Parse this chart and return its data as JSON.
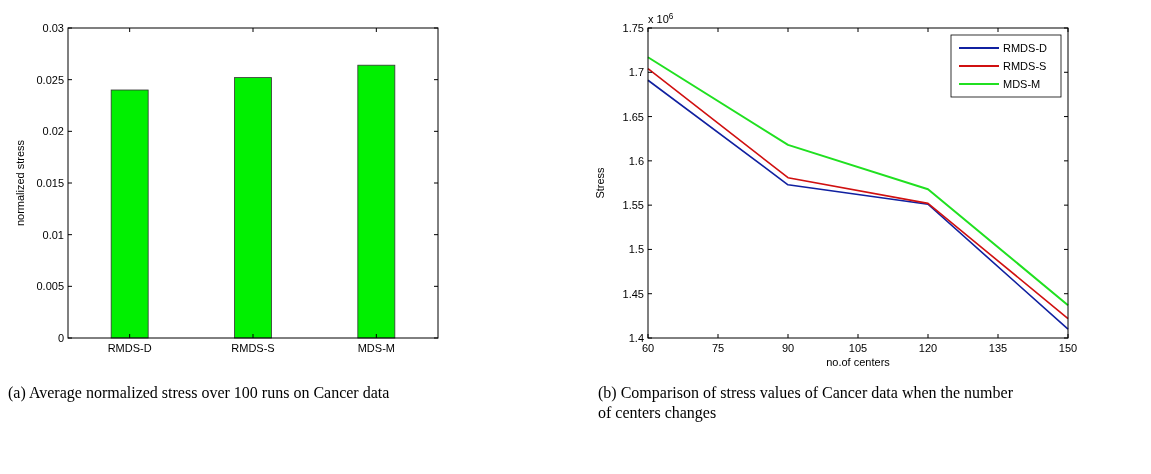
{
  "chart_data": [
    {
      "type": "bar",
      "title": "(a)  Average normalized stress over 100 runs on Cancer data",
      "ylabel": "normalized stress",
      "categories": [
        "RMDS-D",
        "RMDS-S",
        "MDS-M"
      ],
      "values": [
        0.024,
        0.0252,
        0.0264
      ],
      "color": "#00f000",
      "ylim": [
        0,
        0.03
      ],
      "yticks": [
        0,
        0.005,
        0.01,
        0.015,
        0.02,
        0.025,
        0.03
      ]
    },
    {
      "type": "line",
      "title": "(b)  Comparison of stress values of Cancer data when the number of centers changes",
      "xlabel": "no.of centers",
      "ylabel": "Stress",
      "annotations": [
        "x 10$^{6}$"
      ],
      "x": [
        60,
        90,
        120,
        150
      ],
      "xlim": [
        60,
        150
      ],
      "xticks": [
        60,
        75,
        90,
        105,
        120,
        135,
        150
      ],
      "ylim": [
        1.4,
        1.75
      ],
      "yticks": [
        1.4,
        1.45,
        1.5,
        1.55,
        1.6,
        1.65,
        1.7,
        1.75
      ],
      "legend": "top right",
      "series": [
        {
          "name": "RMDS-D",
          "color": "#1020a0",
          "values": [
            1.691,
            1.573,
            1.551,
            1.41
          ]
        },
        {
          "name": "RMDS-S",
          "color": "#d01010",
          "values": [
            1.704,
            1.581,
            1.552,
            1.422
          ]
        },
        {
          "name": "MDS-M",
          "color": "#20e020",
          "values": [
            1.717,
            1.618,
            1.568,
            1.437
          ]
        }
      ]
    }
  ]
}
